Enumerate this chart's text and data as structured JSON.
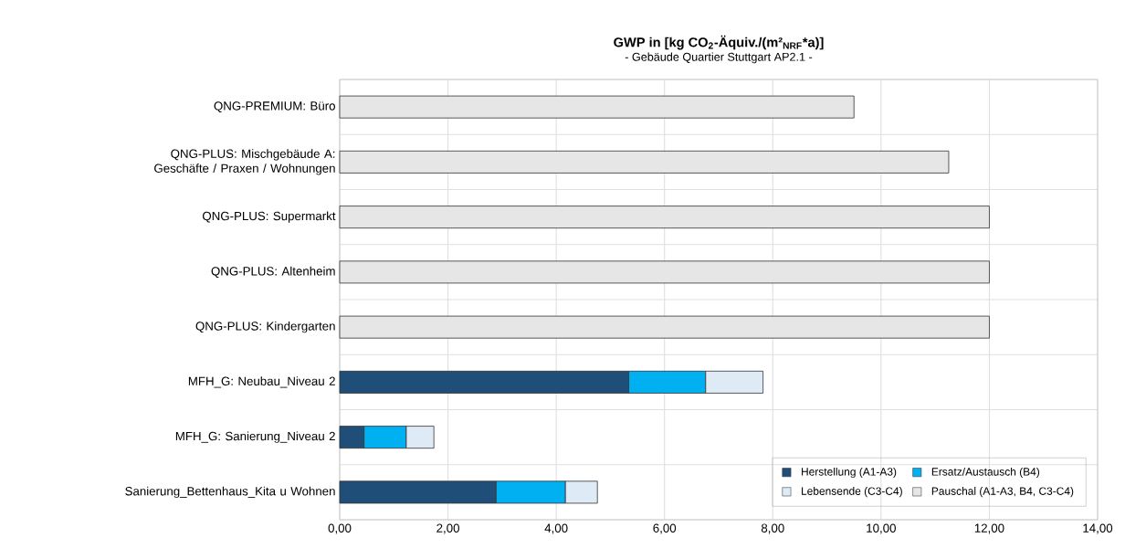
{
  "chart_data": {
    "type": "bar",
    "orientation": "horizontal",
    "stacked": true,
    "title": "GWP in [kg CO$_{2}$-Äquiv./(m²$_{NRF}$*a)]",
    "subtitle": "- Gebäude Quartier Stuttgart AP2.1 -",
    "categories": [
      "QNG-PREMIUM: Büro",
      "QNG-PLUS: Mischgebäude A: Geschäfte / Praxen / Wohnungen",
      "QNG-PLUS: Supermarkt",
      "QNG-PLUS: Altenheim",
      "QNG-PLUS: Kindergarten",
      "MFH_G: Neubau_Niveau 2",
      "MFH_G: Sanierung_Niveau 2",
      "Sanierung_Bettenhaus_Kita u Wohnen"
    ],
    "series": [
      {
        "name": "Herstellung (A1-A3)",
        "color": "#1f4e79",
        "values": [
          null,
          null,
          null,
          null,
          null,
          5.34,
          0.45,
          2.89
        ]
      },
      {
        "name": "Ersatz/Austausch (B4)",
        "color": "#00b0f0",
        "values": [
          null,
          null,
          null,
          null,
          null,
          1.42,
          0.78,
          1.28
        ]
      },
      {
        "name": "Lebensende (C3-C4)",
        "color": "#deebf7",
        "values": [
          null,
          null,
          null,
          null,
          null,
          1.06,
          0.51,
          0.59
        ]
      },
      {
        "name": "Pauschal (A1-A3, B4, C3-C4)",
        "color": "#e6e6e6",
        "values": [
          9.5,
          11.25,
          12.0,
          12.0,
          12.0,
          null,
          null,
          null
        ]
      }
    ],
    "xlim": [
      0,
      14
    ],
    "xticks": [
      {
        "value": 0,
        "label": "0,00"
      },
      {
        "value": 2,
        "label": "2,00"
      },
      {
        "value": 4,
        "label": "4,00"
      },
      {
        "value": 6,
        "label": "6,00"
      },
      {
        "value": 8,
        "label": "8,00"
      },
      {
        "value": 10,
        "label": "10,00"
      },
      {
        "value": 12,
        "label": "12,00"
      },
      {
        "value": 14,
        "label": "14,00"
      }
    ],
    "grid": true,
    "legend": "bottom right"
  }
}
